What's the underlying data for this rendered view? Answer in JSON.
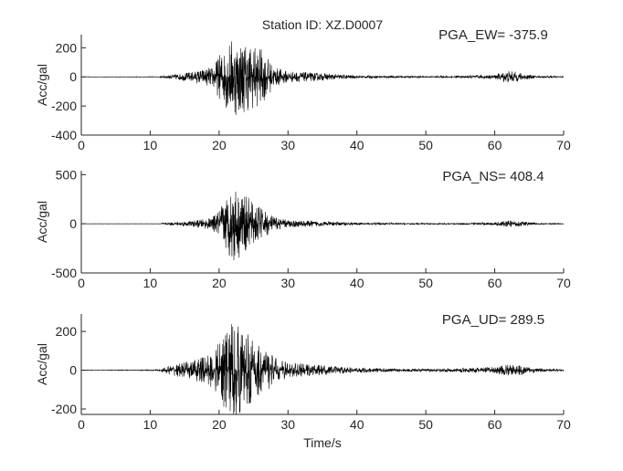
{
  "title": "Station ID: XZ.D0007",
  "chart_data": [
    {
      "type": "line",
      "xlabel": "",
      "ylabel": "Acc/gal",
      "xlim": [
        0,
        70
      ],
      "ylim": [
        -400,
        290
      ],
      "xticks": [
        "0",
        "10",
        "20",
        "30",
        "40",
        "50",
        "60",
        "70"
      ],
      "yticks": [
        "-400",
        "-200",
        "0",
        "200"
      ],
      "ytick_values": [
        -400,
        -200,
        0,
        200
      ],
      "annotation": "PGA_EW= -375.9",
      "pga": -375.9,
      "envelope": {
        "t": [
          0,
          11,
          13,
          16,
          19,
          20,
          22,
          24,
          26,
          28,
          30,
          35,
          40,
          50,
          55,
          60,
          62,
          64,
          66,
          70
        ],
        "amp": [
          1,
          2,
          15,
          35,
          70,
          150,
          280,
          240,
          200,
          70,
          40,
          25,
          10,
          5,
          8,
          15,
          45,
          25,
          8,
          4
        ]
      }
    },
    {
      "type": "line",
      "xlabel": "",
      "ylabel": "Acc/gal",
      "xlim": [
        0,
        70
      ],
      "ylim": [
        -500,
        540
      ],
      "xticks": [
        "0",
        "10",
        "20",
        "30",
        "40",
        "50",
        "60",
        "70"
      ],
      "yticks": [
        "-500",
        "0",
        "500"
      ],
      "ytick_values": [
        -500,
        0,
        500
      ],
      "annotation": "PGA_NS= 408.4",
      "pga": 408.4,
      "envelope": {
        "t": [
          0,
          11,
          13,
          16,
          19,
          20,
          22,
          24,
          26,
          28,
          30,
          35,
          40,
          50,
          55,
          60,
          62,
          64,
          66,
          70
        ],
        "amp": [
          1,
          2,
          15,
          30,
          60,
          150,
          400,
          280,
          170,
          70,
          40,
          25,
          12,
          6,
          8,
          15,
          35,
          25,
          8,
          4
        ]
      }
    },
    {
      "type": "line",
      "xlabel": "Time/s",
      "ylabel": "Acc/gal",
      "xlim": [
        0,
        70
      ],
      "ylim": [
        -228,
        290
      ],
      "xticks": [
        "0",
        "10",
        "20",
        "30",
        "40",
        "50",
        "60",
        "70"
      ],
      "yticks": [
        "-200",
        "0",
        "200"
      ],
      "ytick_values": [
        -200,
        0,
        200
      ],
      "annotation": "PGA_UD= 289.5",
      "pga": 289.5,
      "envelope": {
        "t": [
          0,
          11,
          13,
          16,
          19,
          20,
          22,
          24,
          26,
          28,
          30,
          35,
          40,
          50,
          55,
          60,
          62,
          64,
          66,
          70
        ],
        "amp": [
          1,
          3,
          25,
          50,
          90,
          150,
          280,
          190,
          150,
          70,
          40,
          25,
          12,
          7,
          10,
          18,
          30,
          25,
          10,
          4
        ]
      }
    }
  ]
}
